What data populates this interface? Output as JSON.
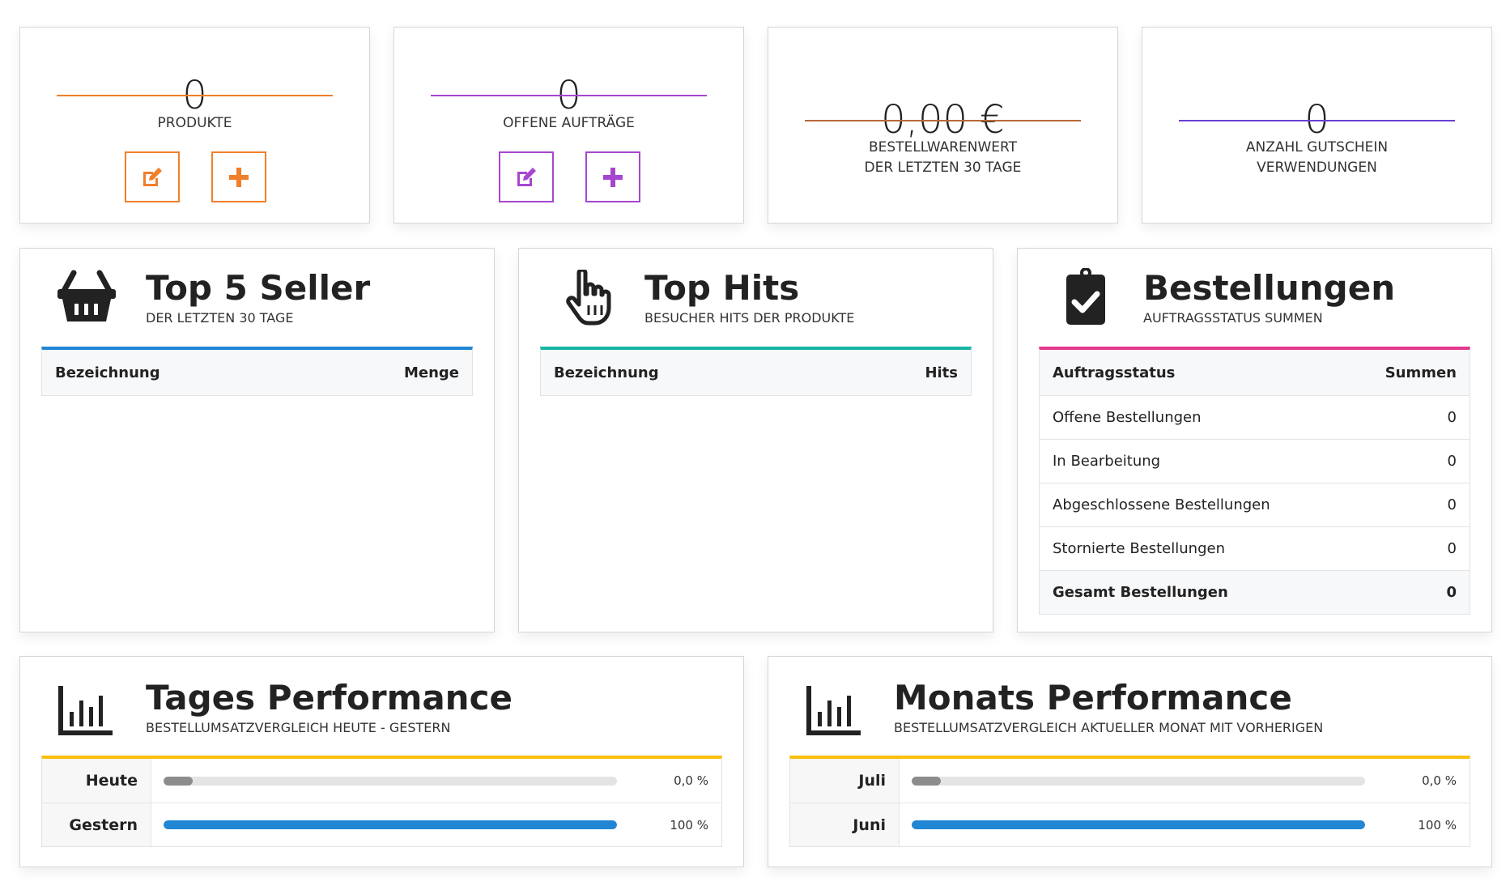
{
  "colors": {
    "orange": "#f07f2a",
    "purple": "#a646d0",
    "brown": "#b8683a",
    "violet": "#6a3fd0",
    "blue": "#2186d4",
    "teal": "#17b5a6",
    "pink": "#e2388f",
    "yellow": "#fbbf0a",
    "grey_bar": "#8c8c8c"
  },
  "stats": [
    {
      "value": "0",
      "label": "PRODUKTE",
      "buttons": [
        "edit-icon",
        "plus-icon"
      ]
    },
    {
      "value": "0",
      "label": "OFFENE AUFTRÄGE",
      "buttons": [
        "edit-icon",
        "plus-icon"
      ]
    },
    {
      "value": "0,00 €",
      "label_line1": "BESTELLWARENWERT",
      "label_line2": "DER LETZTEN 30 TAGE"
    },
    {
      "value": "0",
      "label_line1": "ANZAHL GUTSCHEIN",
      "label_line2": "VERWENDUNGEN"
    }
  ],
  "top_seller": {
    "icon": "basket-icon",
    "title": "Top 5 Seller",
    "subtitle": "DER LETZTEN 30 TAGE",
    "columns": [
      "Bezeichnung",
      "Menge"
    ]
  },
  "top_hits": {
    "icon": "pointer-hand-icon",
    "title": "Top Hits",
    "subtitle": "BESUCHER HITS DER PRODUKTE",
    "columns": [
      "Bezeichnung",
      "Hits"
    ]
  },
  "orders": {
    "icon": "clipboard-check-icon",
    "title": "Bestellungen",
    "subtitle": "AUFTRAGSSTATUS SUMMEN",
    "columns": [
      "Auftragsstatus",
      "Summen"
    ],
    "rows": [
      [
        "Offene Bestellungen",
        "0"
      ],
      [
        "In Bearbeitung",
        "0"
      ],
      [
        "Abgeschlossene Bestellungen",
        "0"
      ],
      [
        "Stornierte Bestellungen",
        "0"
      ]
    ],
    "total": [
      "Gesamt Bestellungen",
      "0"
    ]
  },
  "daily": {
    "icon": "bar-chart-icon",
    "title": "Tages Performance",
    "subtitle": "BESTELLUMSATZVERGLEICH HEUTE - GESTERN",
    "rows": [
      {
        "label": "Heute",
        "percent": 0,
        "text": "0,0 %"
      },
      {
        "label": "Gestern",
        "percent": 100,
        "text": "100 %"
      }
    ]
  },
  "monthly": {
    "icon": "bar-chart-icon",
    "title": "Monats Performance",
    "subtitle": "BESTELLUMSATZVERGLEICH AKTUELLER MONAT MIT VORHERIGEN",
    "rows": [
      {
        "label": "Juli",
        "percent": 0,
        "text": "0,0 %"
      },
      {
        "label": "Juni",
        "percent": 100,
        "text": "100 %"
      }
    ]
  }
}
